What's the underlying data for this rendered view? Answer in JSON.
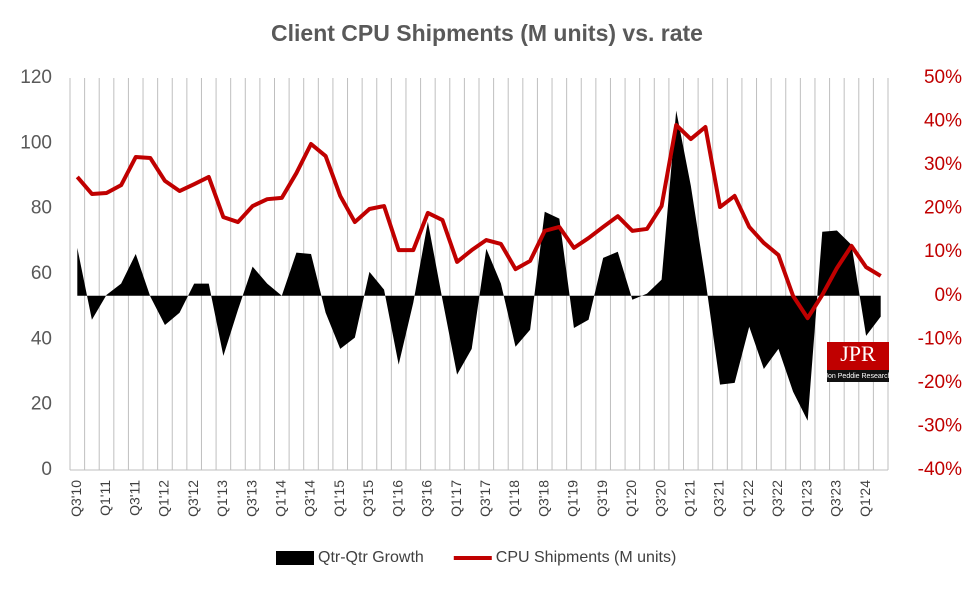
{
  "chart_data": {
    "type": "line-area",
    "title": "Client CPU Shipments (M units) vs. rate",
    "categories": [
      "Q3'10",
      null,
      "Q1'11",
      null,
      "Q3'11",
      null,
      "Q1'12",
      null,
      "Q3'12",
      null,
      "Q1'13",
      null,
      "Q3'13",
      null,
      "Q1'14",
      null,
      "Q3'14",
      null,
      "Q1'15",
      null,
      "Q3'15",
      null,
      "Q1'16",
      null,
      "Q3'16",
      null,
      "Q1'17",
      null,
      "Q3'17",
      null,
      "Q1'18",
      null,
      "Q3'18",
      null,
      "Q1'19",
      null,
      "Q3'19",
      null,
      "Q1'20",
      null,
      "Q3'20",
      null,
      "Q1'21",
      null,
      "Q3'21",
      null,
      "Q1'22",
      null,
      "Q3'22",
      null,
      "Q1'23",
      null,
      "Q3'23",
      null,
      "Q1'24",
      null
    ],
    "series": [
      {
        "name": "Qtr-Qtr Growth",
        "color": "#000000",
        "axis": "y2",
        "kind": "area",
        "values": [
          11,
          -5.5,
          0.2,
          2.8,
          9.6,
          -0.2,
          -6.7,
          -3.9,
          2.8,
          2.8,
          -13.8,
          -3.2,
          6.7,
          2.8,
          0,
          9.9,
          9.6,
          -3.9,
          -12.2,
          -9.6,
          5.5,
          1.4,
          -15.8,
          -1.6,
          17,
          -0.9,
          -18.1,
          -12.2,
          10.8,
          2.8,
          -11.7,
          -7.8,
          19.3,
          17.7,
          -7.4,
          -5.5,
          8.7,
          10.1,
          -0.9,
          0.5,
          3.7,
          42.5,
          25.3,
          3.7,
          -20.4,
          -20,
          -7.1,
          -16.8,
          -12.2,
          -22,
          -28.7,
          14.7,
          15,
          11.7,
          -9.2,
          -4.8
        ]
      },
      {
        "name": "CPU Shipments (M units)",
        "color": "#c00000",
        "kind": "line",
        "values": [
          89.7,
          84.5,
          84.8,
          87.2,
          95.8,
          95.5,
          88.5,
          85.4,
          87.5,
          89.7,
          77.4,
          75.9,
          80.8,
          82.9,
          83.3,
          90.9,
          99.8,
          96.1,
          83.9,
          75.9,
          79.9,
          80.8,
          67.3,
          67.3,
          78.7,
          76.5,
          63.7,
          67.3,
          70.4,
          69.2,
          61.5,
          64,
          73.2,
          74.4,
          68,
          71,
          74.4,
          77.7,
          73.2,
          73.8,
          80.8,
          105.6,
          101.3,
          105,
          80.5,
          83.9,
          74.4,
          69.5,
          65.8,
          53.3,
          46.5,
          53.6,
          61.8,
          68.6,
          62.1,
          59.4
        ]
      }
    ],
    "ylim": [
      0,
      120
    ],
    "yticks": [
      0,
      20,
      40,
      60,
      80,
      100,
      120
    ],
    "y2lim": [
      -40,
      50
    ],
    "y2ticks": [
      {
        "value": -40,
        "label": "-40%"
      },
      {
        "value": -30,
        "label": "-30%"
      },
      {
        "value": -20,
        "label": "-20%"
      },
      {
        "value": -10,
        "label": "-10%"
      },
      {
        "value": 0,
        "label": "0%"
      },
      {
        "value": 10,
        "label": "10%"
      },
      {
        "value": 20,
        "label": "20%"
      },
      {
        "value": 30,
        "label": "30%"
      },
      {
        "value": 40,
        "label": "40%"
      },
      {
        "value": 50,
        "label": "50%"
      }
    ],
    "y2color": "#c00000",
    "grid": "x",
    "legend": "bottom"
  },
  "logo": {
    "text": "JPR",
    "subtitle": "Jon Peddie Research"
  }
}
